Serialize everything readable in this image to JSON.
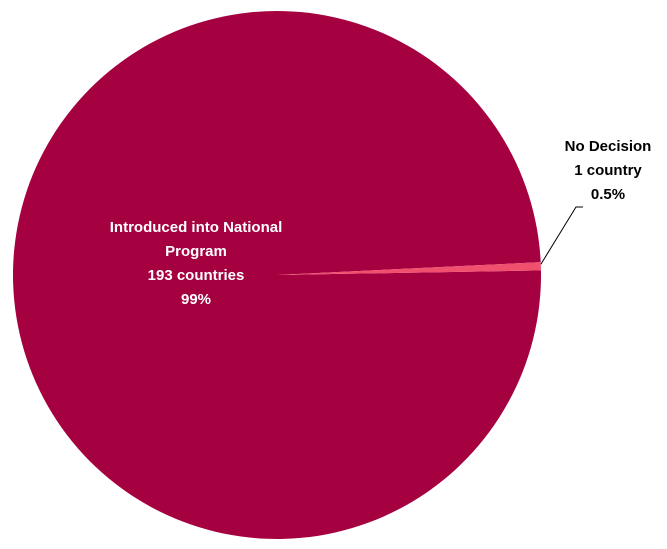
{
  "chart_data": {
    "type": "pie",
    "title": "",
    "slices": [
      {
        "label_lines": [
          "Introduced into National",
          "Program",
          "193 countries",
          "99%"
        ],
        "category": "Introduced into National Program",
        "count": 193,
        "count_text": "193 countries",
        "percent": 99.5,
        "percent_text": "99%",
        "color": "#A50040"
      },
      {
        "label_lines": [
          "No Decision",
          "1 country",
          "0.5%"
        ],
        "category": "No Decision",
        "count": 1,
        "count_text": "1 country",
        "percent": 0.5,
        "percent_text": "0.5%",
        "color": "#F0506E"
      }
    ],
    "legend": "none"
  }
}
